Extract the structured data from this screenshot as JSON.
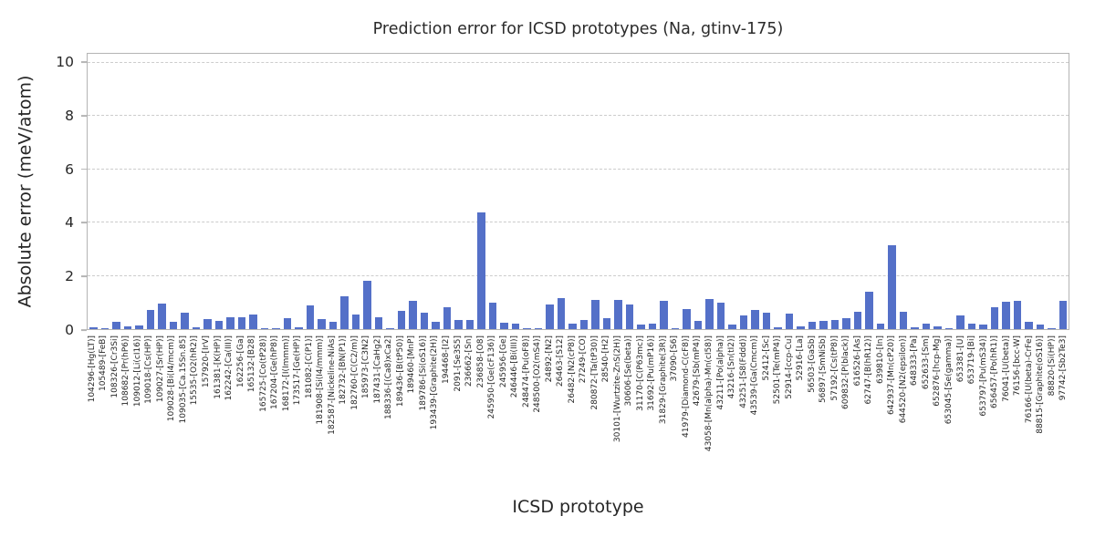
{
  "figure": {
    "title": "Prediction error for ICSD prototypes (Na, gtinv-175)",
    "xlabel": "ICSD prototype",
    "ylabel": "Absolute error (meV/atom)"
  },
  "chart_data": {
    "type": "bar",
    "title": "Prediction error for ICSD prototypes (Na, gtinv-175)",
    "xlabel": "ICSD prototype",
    "ylabel": "Absolute error (meV/atom)",
    "ylim": [
      0,
      10.34
    ],
    "yticks": [
      0,
      2,
      4,
      6,
      8,
      10
    ],
    "grid_values": [
      2,
      4,
      6,
      8,
      10
    ],
    "grid": "dashed horizontal",
    "legend": "none",
    "bar_color": "#5470c8",
    "grid_color": "#cccccc",
    "spine_color": "#b4b4b4",
    "text_color": "#262626",
    "categories": [
      "104296-[Hg(LT)]",
      "105489-[FeB]",
      "108326-[Cr3Si]",
      "108682-[Pr(hP6)]",
      "109012-[Li(cI16)]",
      "109018-[Cs(HP)]",
      "109027-[Sr(HP)]",
      "109028-[Bi(I4/mcm)]",
      "109035-[Ca.15Sn.85]",
      "15535-[O2(hR2)]",
      "157920-[IrV]",
      "161381-[K(HP)]",
      "162242-[Ca(III)]",
      "162256-[Ga]",
      "165132-[B28]",
      "165725-[Co(tP28)]",
      "167204-[Ge(hP8)]",
      "168172-[I(Immm)]",
      "173517-[Ge(HP)]",
      "181082-[C(P1)]",
      "181908-[Si(I4/mmm)]",
      "182587-[Nickeline-NiAs]",
      "182732-[BN(P1)]",
      "182760-[C(C2/m)]",
      "185973-[C3N2]",
      "187431-[CaHg2]",
      "188336-[(Ca8)xCa2]",
      "189436-[B(tP50)]",
      "189460-[MnP]",
      "189786-[Si(oS16)]",
      "193439-[Graphite(2H)]",
      "194468-[I2]",
      "2091-[Se3S5]",
      "236662-[Sn]",
      "236858-[O8]",
      "245950-[Ge(cF136)]",
      "245956-[Ge]",
      "246446-[Bi(III)]",
      "248474-[Pu(oF8)]",
      "248500-[O2(mS4)]",
      "24892-[N2]",
      "26463-[S12]",
      "26482-[N2(cP8)]",
      "27249-[CO]",
      "280872-[Ta(tP30)]",
      "28540-[H2]",
      "30101-[Wurtzite-ZnS(2H)]",
      "30606-[Se(beta)]",
      "31170-[C(P63mc)]",
      "31692-[Pu(mP16)]",
      "31829-[Graphite(3R)]",
      "37090-[S6]",
      "41979-[Diamond-C(cF8)]",
      "42679-[Sb(mP4)]",
      "43058-[Mn(alpha)-Mn(cI58)]",
      "43211-[Po(alpha)]",
      "43216-[Sn(tI2)]",
      "43251-[S8(Fddd)]",
      "43539-[Ga(Cmcm)]",
      "52412-[Sc]",
      "52501-[Te(mP4)]",
      "52914-[ccp-Cu]",
      "52916-[La]",
      "56503-[GaSb]",
      "56897-[SmNiSb]",
      "57192-[Cs(tP8)]",
      "609832-[P(black)]",
      "616526-[As]",
      "62747-[B(hR12)]",
      "639810-[In]",
      "642937-[Mn(cP20)]",
      "644520-[N2(epsilon)]",
      "648333-[Pa]",
      "652633-[Sm]",
      "652876-[hcp-Mg]",
      "653045-[Se(gamma)]",
      "653381-[U]",
      "653719-[Bi]",
      "653797-[Pu(mS34)]",
      "656457-[Po(hR1)]",
      "76041-[U(beta)]",
      "76156-[bcc-W]",
      "76166-[U(beta)-CrFe]",
      "88815-[Graphite(oS16)]",
      "88820-[Si(HP)]",
      "97742-[Sb2Te3]"
    ],
    "values": [
      0.08,
      0.02,
      0.26,
      0.09,
      0.15,
      0.72,
      0.95,
      0.29,
      0.63,
      0.07,
      0.37,
      0.32,
      0.45,
      0.43,
      0.55,
      0.02,
      0.02,
      0.4,
      0.06,
      0.88,
      0.37,
      0.26,
      1.22,
      0.55,
      1.8,
      0.45,
      0.05,
      0.7,
      1.05,
      0.6,
      0.26,
      0.82,
      0.33,
      0.34,
      4.4,
      1.0,
      0.23,
      0.22,
      0.02,
      0.02,
      0.92,
      1.18,
      0.21,
      0.35,
      1.08,
      0.41,
      1.1,
      0.94,
      0.17,
      0.21,
      1.07,
      0.02,
      0.74,
      0.32,
      1.13,
      1.0,
      0.16,
      0.5,
      0.71,
      0.62,
      0.07,
      0.59,
      0.09,
      0.28,
      0.31,
      0.34,
      0.41,
      0.66,
      1.4,
      0.22,
      3.15,
      0.65,
      0.08,
      0.22,
      0.12,
      0.02,
      0.52,
      0.22,
      0.17,
      0.82,
      1.04,
      1.06,
      0.27,
      0.16,
      0.02,
      1.05
    ]
  }
}
